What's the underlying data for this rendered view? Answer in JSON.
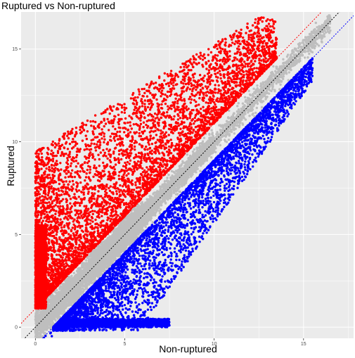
{
  "chart_data": {
    "type": "scatter",
    "title": "Ruptured vs Non-ruptured",
    "xlabel": "Non-ruptured",
    "ylabel": "Ruptured",
    "xlim": [
      -0.8,
      17.8
    ],
    "ylim": [
      -0.6,
      17.0
    ],
    "x_ticks": [
      0,
      5,
      10,
      15
    ],
    "y_ticks": [
      0,
      5,
      10,
      15
    ],
    "grid": true,
    "background": "#ebebeb",
    "series": [
      {
        "group": "up",
        "color": "#ff0000"
      },
      {
        "group": "down",
        "color": "#0000ff"
      },
      {
        "group": "unchanged",
        "color": "#bebebe"
      }
    ],
    "reference_lines": [
      {
        "intercept": 0,
        "slope": 1,
        "color": "#000000",
        "dash": "dotted"
      },
      {
        "intercept": 1,
        "slope": 1,
        "color": "#ff0000",
        "dash": "dotted"
      },
      {
        "intercept": -1,
        "slope": 1,
        "color": "#0000ff",
        "dash": "dotted"
      }
    ]
  }
}
